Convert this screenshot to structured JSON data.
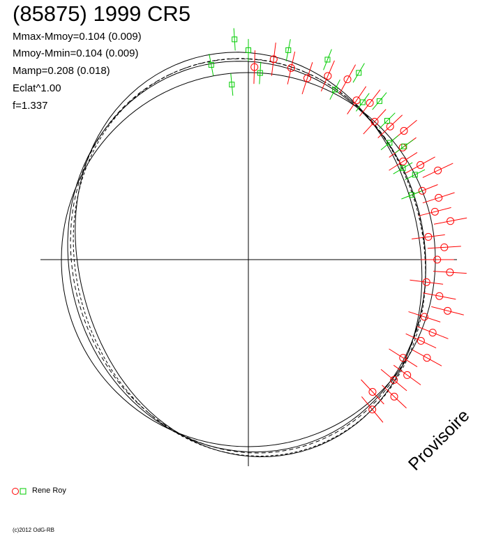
{
  "header": {
    "title": "(85875) 1999 CR5",
    "stats": [
      "Mmax-Mmoy=0.104 (0.009)",
      "Mmoy-Mmin=0.104 (0.009)",
      "Mamp=0.208 (0.018)",
      "Eclat^1.00",
      "f=1.337"
    ]
  },
  "watermark": "Provisoire",
  "legend": {
    "label": "Rene Roy",
    "red_color": "#ff0000",
    "green_color": "#00cc00"
  },
  "footer": {
    "copyright": "(c)2012 OdG-RB"
  },
  "chart_data": {
    "type": "scatter",
    "title": "(85875) 1999 CR5",
    "coordinates": "polar (phase angle from top, clockwise; radius = relative brightness)",
    "reference_circle_radius": 1.0,
    "fit_curves": 4,
    "series": [
      {
        "name": "Rene Roy",
        "marker": "circle",
        "color": "#ff0000",
        "points": [
          {
            "phase": 0.005,
            "r": 1.03
          },
          {
            "phase": 0.02,
            "r": 1.08
          },
          {
            "phase": 0.035,
            "r": 1.05
          },
          {
            "phase": 0.05,
            "r": 1.02
          },
          {
            "phase": 0.065,
            "r": 1.07
          },
          {
            "phase": 0.08,
            "r": 1.1
          },
          {
            "phase": 0.095,
            "r": 1.03
          },
          {
            "phase": 0.105,
            "r": 1.06
          },
          {
            "phase": 0.118,
            "r": 1.0
          },
          {
            "phase": 0.13,
            "r": 1.04
          },
          {
            "phase": 0.14,
            "r": 1.08
          },
          {
            "phase": 0.15,
            "r": 1.02
          },
          {
            "phase": 0.16,
            "r": 0.98
          },
          {
            "phase": 0.17,
            "r": 1.05
          },
          {
            "phase": 0.18,
            "r": 1.12
          },
          {
            "phase": 0.19,
            "r": 1.0
          },
          {
            "phase": 0.2,
            "r": 1.07
          },
          {
            "phase": 0.21,
            "r": 1.03
          },
          {
            "phase": 0.22,
            "r": 1.1
          },
          {
            "phase": 0.23,
            "r": 0.97
          },
          {
            "phase": 0.24,
            "r": 1.05
          },
          {
            "phase": 0.25,
            "r": 1.01
          },
          {
            "phase": 0.26,
            "r": 1.08
          },
          {
            "phase": 0.27,
            "r": 0.96
          },
          {
            "phase": 0.28,
            "r": 1.04
          },
          {
            "phase": 0.29,
            "r": 1.1
          },
          {
            "phase": 0.3,
            "r": 0.99
          },
          {
            "phase": 0.31,
            "r": 1.06
          },
          {
            "phase": 0.32,
            "r": 1.02
          },
          {
            "phase": 0.33,
            "r": 1.09
          },
          {
            "phase": 0.34,
            "r": 0.98
          },
          {
            "phase": 0.35,
            "r": 1.05
          },
          {
            "phase": 0.36,
            "r": 1.01
          },
          {
            "phase": 0.37,
            "r": 1.07
          },
          {
            "phase": 0.38,
            "r": 0.97
          },
          {
            "phase": 0.39,
            "r": 1.04
          }
        ]
      },
      {
        "name": "",
        "marker": "square",
        "color": "#00cc00",
        "points": [
          {
            "phase": 0.97,
            "r": 1.06
          },
          {
            "phase": 0.985,
            "r": 0.94
          },
          {
            "phase": 0.99,
            "r": 1.18
          },
          {
            "phase": 0.0,
            "r": 1.12
          },
          {
            "phase": 0.01,
            "r": 1.0
          },
          {
            "phase": 0.03,
            "r": 1.14
          },
          {
            "phase": 0.06,
            "r": 1.15
          },
          {
            "phase": 0.075,
            "r": 1.02
          },
          {
            "phase": 0.085,
            "r": 1.16
          },
          {
            "phase": 0.1,
            "r": 1.04
          },
          {
            "phase": 0.11,
            "r": 1.1
          },
          {
            "phase": 0.125,
            "r": 1.05
          },
          {
            "phase": 0.14,
            "r": 0.98
          },
          {
            "phase": 0.15,
            "r": 1.03
          },
          {
            "phase": 0.165,
            "r": 0.96
          },
          {
            "phase": 0.175,
            "r": 1.0
          },
          {
            "phase": 0.19,
            "r": 0.94
          }
        ]
      }
    ]
  }
}
